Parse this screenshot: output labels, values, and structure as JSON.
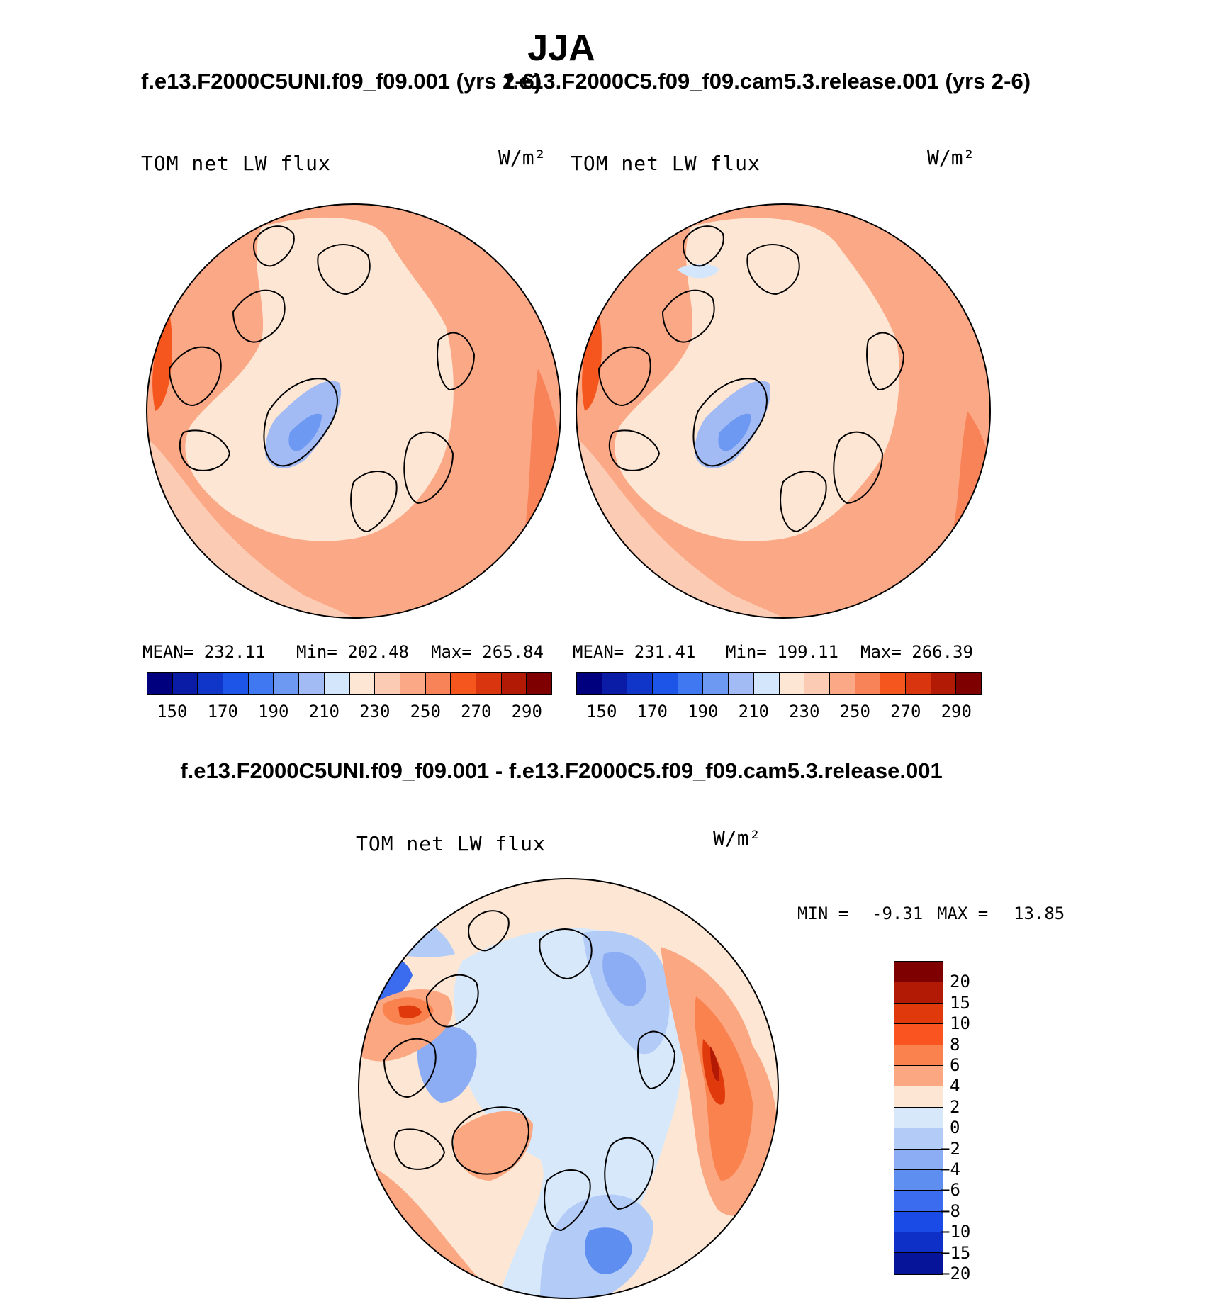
{
  "title": "JJA",
  "panels": {
    "case1": {
      "title": "f.e13.F2000C5UNI.f09_f09.001 (yrs 2-6)",
      "field": "TOM net LW flux",
      "units": "W/m²",
      "mean": "MEAN= 232.11",
      "min": "Min= 202.48",
      "max": "Max= 265.84"
    },
    "case2": {
      "title": "f.e13.F2000C5.f09_f09.cam5.3.release.001 (yrs 2-6)",
      "field": "TOM net LW flux",
      "units": "W/m²",
      "mean": "MEAN= 231.41",
      "min": "Min= 199.11",
      "max": "Max= 266.39"
    },
    "diff": {
      "title": "f.e13.F2000C5UNI.f09_f09.001 - f.e13.F2000C5.f09_f09.cam5.3.release.001",
      "field": "TOM net LW flux",
      "units": "W/m²",
      "min_label": "MIN =",
      "min_value": "-9.31",
      "max_label": "MAX =",
      "max_value": "13.85"
    }
  },
  "colorbar_abs": {
    "colors": [
      "#00007f",
      "#0a1ba6",
      "#0f36c8",
      "#1d55e8",
      "#3f78f0",
      "#6e99f2",
      "#a2bbf4",
      "#d4e6fb",
      "#fde7d4",
      "#fccbb4",
      "#fba886",
      "#f98358",
      "#f4561e",
      "#d93610",
      "#b31a06",
      "#7f0000"
    ],
    "tick_labels": [
      "150",
      "170",
      "190",
      "210",
      "230",
      "250",
      "270",
      "290"
    ]
  },
  "colorbar_diff": {
    "colors": [
      "#7f0000",
      "#b31a06",
      "#e03a0c",
      "#fa5420",
      "#f9824e",
      "#fba782",
      "#fde7d4",
      "#d7e8fb",
      "#b3cbf7",
      "#8cadf4",
      "#5f8ef1",
      "#3b6bee",
      "#1a4be6",
      "#0f30c6",
      "#06149a"
    ],
    "labels": [
      "20",
      "15",
      "10",
      "8",
      "6",
      "4",
      "2",
      "0",
      "−2",
      "−4",
      "−6",
      "−8",
      "−10",
      "−15",
      "−20"
    ]
  }
}
